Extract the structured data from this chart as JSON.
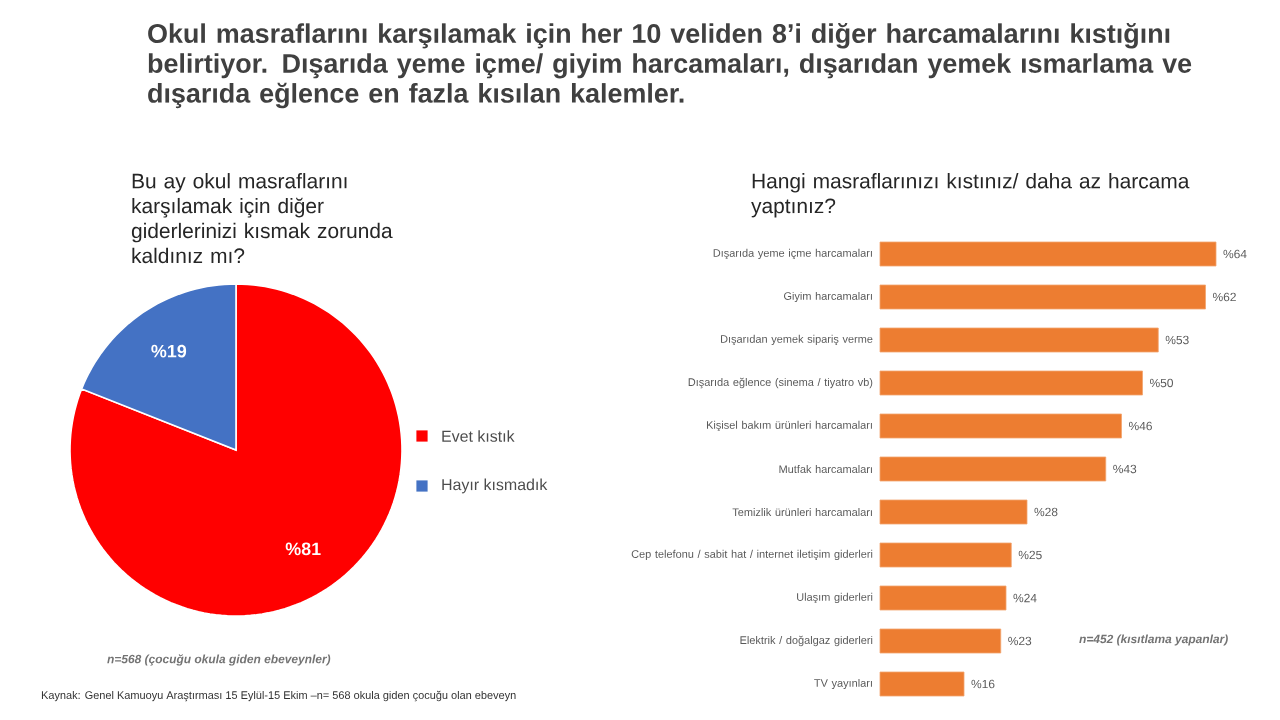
{
  "chart_data": [
    {
      "type": "pie",
      "title": "Okul masraflarını karşılamak için her 10 veliden 8’i diğer harcamalarını kıstığını belirtiyor. Dışarıda yeme içme/ giyim harcamaları, dışarıdan yemek ısmarlama ve dışarıda eğlence en fazla kısılan kalemler.",
      "subtitle": "Bu ay okul masraflarını karşılamak için diğer giderlerinizi kısmak zorunda kaldınız mı?",
      "categories": [
        "Evet kıstık",
        "Hayır kısmadık"
      ],
      "values": [
        81,
        19
      ],
      "colors": [
        "#ff0000",
        "#4472c4"
      ],
      "value_labels": [
        "%81",
        "%19"
      ],
      "legend": "right",
      "annotations": [
        "n=568 (çocuğu okula giden ebeveynler)",
        "Kaynak: Genel Kamuoyu Araştırması 15 Eylül-15 Ekim –n= 568 okula giden çocuğu olan ebeveyn"
      ]
    },
    {
      "type": "bar",
      "orientation": "horizontal",
      "title": "Hangi masraflarınızı kıstınız/ daha az harcama yaptınız?",
      "categories": [
        "Dışarıda yeme içme harcamaları",
        "Giyim harcamaları",
        "Dışarıdan yemek sipariş verme",
        "Dışarıda eğlence (sinema / tiyatro vb)",
        "Kişisel bakım ürünleri harcamaları",
        "Mutfak harcamaları",
        "Temizlik ürünleri harcamaları",
        "Cep telefonu / sabit hat / internet iletişim giderleri",
        "Ulaşım giderleri",
        "Elektrik / doğalgaz giderleri",
        "TV yayınları"
      ],
      "values": [
        64,
        62,
        53,
        50,
        46,
        43,
        28,
        25,
        24,
        23,
        16
      ],
      "color": "#ed7d31",
      "value_labels": [
        "%64",
        "%62",
        "%53",
        "%50",
        "%46",
        "%43",
        "%28",
        "%25",
        "%24",
        "%23",
        "%16"
      ],
      "annotations": [
        "n=452 (kısıtlama yapanlar)"
      ]
    }
  ]
}
